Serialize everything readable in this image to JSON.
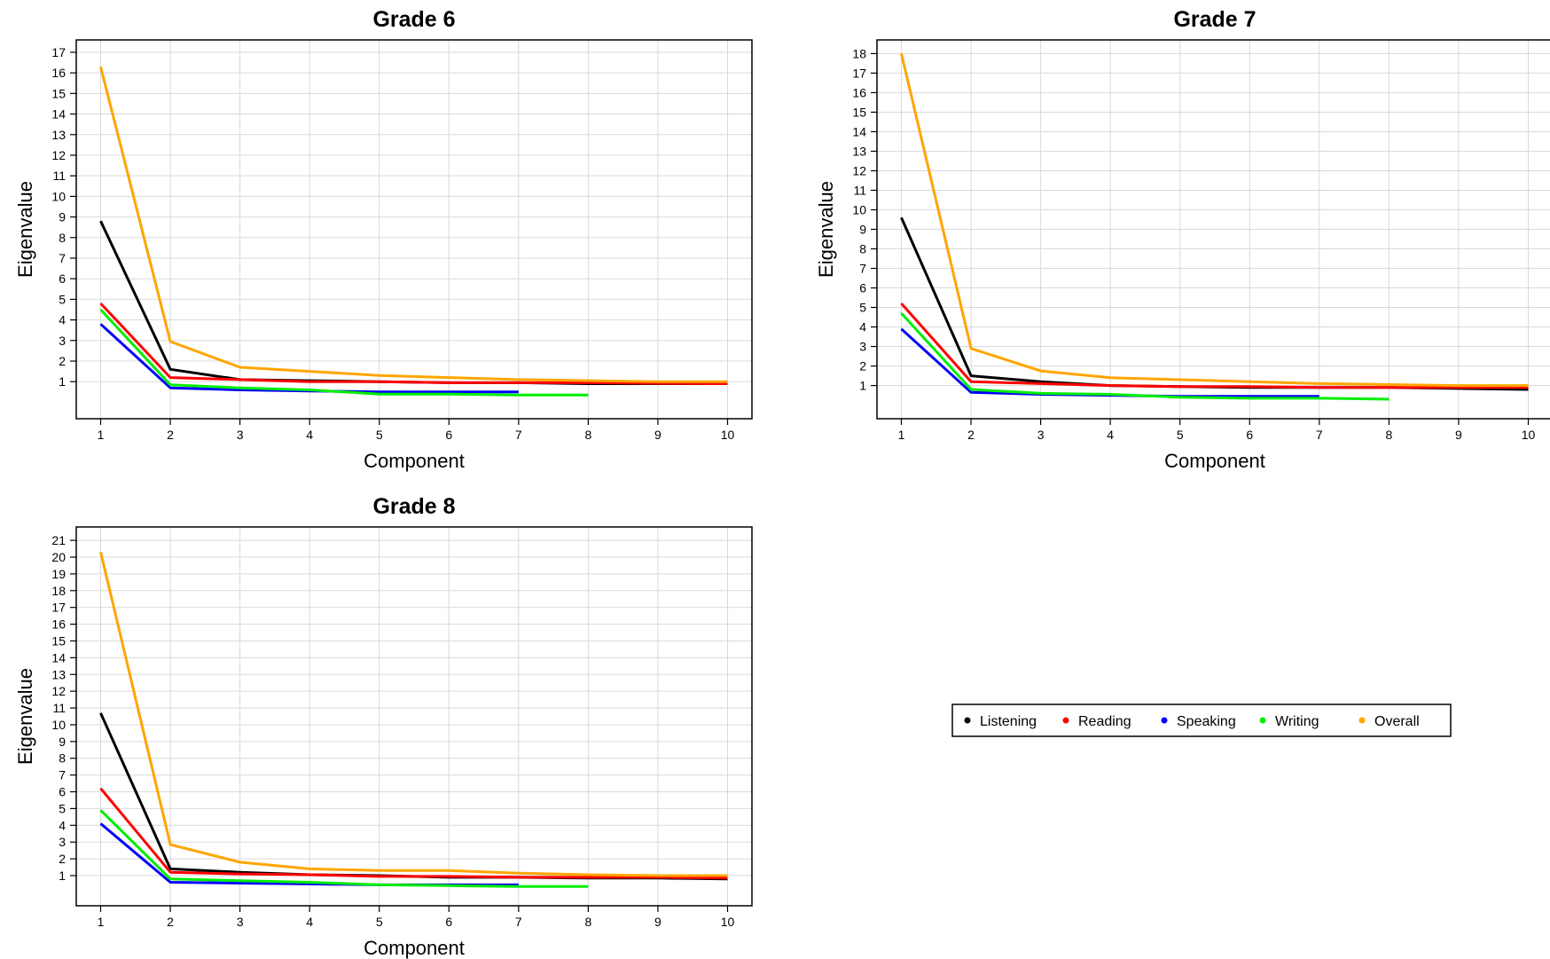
{
  "chart_data": [
    {
      "type": "line",
      "title": "Grade 6",
      "xlabel": "Component",
      "ylabel": "Eigenvalue",
      "x_ticks": [
        1,
        2,
        3,
        4,
        5,
        6,
        7,
        8,
        9,
        10
      ],
      "y_ticks": [
        1,
        2,
        3,
        4,
        5,
        6,
        7,
        8,
        9,
        10,
        11,
        12,
        13,
        14,
        15,
        16,
        17
      ],
      "xlim": [
        0.65,
        10.35
      ],
      "ylim": [
        -0.8,
        17.6
      ],
      "grid": true,
      "series": [
        {
          "name": "Listening",
          "color": "#000000",
          "x": [
            1,
            2,
            3,
            4,
            5,
            6,
            7,
            8,
            9,
            10
          ],
          "y": [
            8.8,
            1.6,
            1.1,
            1.05,
            1.0,
            0.95,
            0.95,
            0.9,
            0.9,
            0.9
          ]
        },
        {
          "name": "Reading",
          "color": "#ff0000",
          "x": [
            1,
            2,
            3,
            4,
            5,
            6,
            7,
            8,
            9,
            10
          ],
          "y": [
            4.8,
            1.2,
            1.1,
            1.0,
            1.0,
            0.95,
            0.95,
            0.95,
            0.92,
            0.9
          ]
        },
        {
          "name": "Speaking",
          "color": "#0000ff",
          "x": [
            1,
            2,
            3,
            4,
            5,
            6,
            7
          ],
          "y": [
            3.8,
            0.7,
            0.6,
            0.55,
            0.5,
            0.5,
            0.5
          ]
        },
        {
          "name": "Writing",
          "color": "#00ee00",
          "x": [
            1,
            2,
            3,
            4,
            5,
            6,
            7,
            8
          ],
          "y": [
            4.5,
            0.85,
            0.7,
            0.6,
            0.4,
            0.4,
            0.35,
            0.35
          ]
        },
        {
          "name": "Overall",
          "color": "#ffa500",
          "x": [
            1,
            2,
            3,
            4,
            5,
            6,
            7,
            8,
            9,
            10
          ],
          "y": [
            16.3,
            2.95,
            1.7,
            1.5,
            1.3,
            1.2,
            1.1,
            1.05,
            1.0,
            1.0
          ]
        }
      ]
    },
    {
      "type": "line",
      "title": "Grade 7",
      "xlabel": "Component",
      "ylabel": "Eigenvalue",
      "x_ticks": [
        1,
        2,
        3,
        4,
        5,
        6,
        7,
        8,
        9,
        10
      ],
      "y_ticks": [
        1,
        2,
        3,
        4,
        5,
        6,
        7,
        8,
        9,
        10,
        11,
        12,
        13,
        14,
        15,
        16,
        17,
        18
      ],
      "xlim": [
        0.65,
        10.35
      ],
      "ylim": [
        -0.7,
        18.7
      ],
      "grid": true,
      "series": [
        {
          "name": "Listening",
          "color": "#000000",
          "x": [
            1,
            2,
            3,
            4,
            5,
            6,
            7,
            8,
            9,
            10
          ],
          "y": [
            9.6,
            1.5,
            1.2,
            1.0,
            0.95,
            0.9,
            0.9,
            0.9,
            0.85,
            0.8
          ]
        },
        {
          "name": "Reading",
          "color": "#ff0000",
          "x": [
            1,
            2,
            3,
            4,
            5,
            6,
            7,
            8,
            9,
            10
          ],
          "y": [
            5.2,
            1.2,
            1.1,
            1.0,
            0.95,
            0.95,
            0.9,
            0.9,
            0.9,
            0.9
          ]
        },
        {
          "name": "Speaking",
          "color": "#0000ff",
          "x": [
            1,
            2,
            3,
            4,
            5,
            6,
            7
          ],
          "y": [
            3.9,
            0.65,
            0.55,
            0.5,
            0.45,
            0.45,
            0.45
          ]
        },
        {
          "name": "Writing",
          "color": "#00ee00",
          "x": [
            1,
            2,
            3,
            4,
            5,
            6,
            7,
            8
          ],
          "y": [
            4.7,
            0.8,
            0.6,
            0.55,
            0.4,
            0.35,
            0.35,
            0.3
          ]
        },
        {
          "name": "Overall",
          "color": "#ffa500",
          "x": [
            1,
            2,
            3,
            4,
            5,
            6,
            7,
            8,
            9,
            10
          ],
          "y": [
            18.0,
            2.9,
            1.75,
            1.4,
            1.3,
            1.2,
            1.1,
            1.05,
            1.0,
            1.0
          ]
        }
      ]
    },
    {
      "type": "line",
      "title": "Grade 8",
      "xlabel": "Component",
      "ylabel": "Eigenvalue",
      "x_ticks": [
        1,
        2,
        3,
        4,
        5,
        6,
        7,
        8,
        9,
        10
      ],
      "y_ticks": [
        1,
        2,
        3,
        4,
        5,
        6,
        7,
        8,
        9,
        10,
        11,
        12,
        13,
        14,
        15,
        16,
        17,
        18,
        19,
        20,
        21
      ],
      "xlim": [
        0.65,
        10.35
      ],
      "ylim": [
        -0.8,
        21.8
      ],
      "grid": true,
      "series": [
        {
          "name": "Listening",
          "color": "#000000",
          "x": [
            1,
            2,
            3,
            4,
            5,
            6,
            7,
            8,
            9,
            10
          ],
          "y": [
            10.7,
            1.4,
            1.2,
            1.05,
            1.0,
            0.9,
            0.9,
            0.85,
            0.85,
            0.8
          ]
        },
        {
          "name": "Reading",
          "color": "#ff0000",
          "x": [
            1,
            2,
            3,
            4,
            5,
            6,
            7,
            8,
            9,
            10
          ],
          "y": [
            6.2,
            1.2,
            1.1,
            1.05,
            0.95,
            0.95,
            0.9,
            0.9,
            0.9,
            0.85
          ]
        },
        {
          "name": "Speaking",
          "color": "#0000ff",
          "x": [
            1,
            2,
            3,
            4,
            5,
            6,
            7
          ],
          "y": [
            4.1,
            0.6,
            0.55,
            0.5,
            0.45,
            0.45,
            0.45
          ]
        },
        {
          "name": "Writing",
          "color": "#00ee00",
          "x": [
            1,
            2,
            3,
            4,
            5,
            6,
            7,
            8
          ],
          "y": [
            4.9,
            0.8,
            0.7,
            0.6,
            0.45,
            0.4,
            0.35,
            0.35
          ]
        },
        {
          "name": "Overall",
          "color": "#ffa500",
          "x": [
            1,
            2,
            3,
            4,
            5,
            6,
            7,
            8,
            9,
            10
          ],
          "y": [
            20.3,
            2.85,
            1.8,
            1.4,
            1.3,
            1.3,
            1.15,
            1.05,
            1.0,
            1.0
          ]
        }
      ]
    }
  ],
  "legend": {
    "placement": "bottom-right",
    "items": [
      {
        "label": "Listening",
        "color": "#000000"
      },
      {
        "label": "Reading",
        "color": "#ff0000"
      },
      {
        "label": "Speaking",
        "color": "#0000ff"
      },
      {
        "label": "Writing",
        "color": "#00ee00"
      },
      {
        "label": "Overall",
        "color": "#ffa500"
      }
    ]
  }
}
